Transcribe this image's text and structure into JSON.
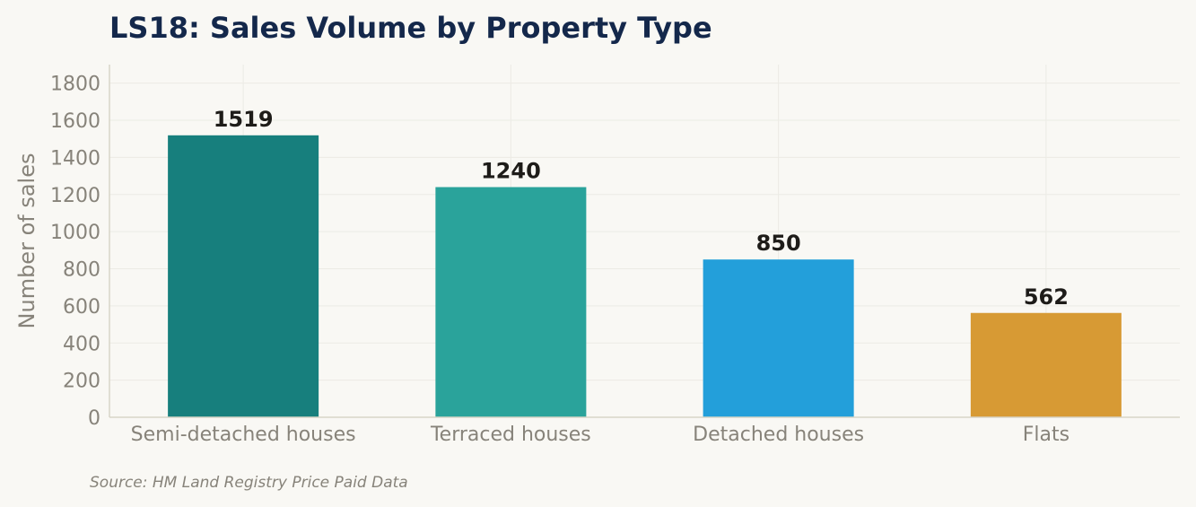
{
  "chart_data": {
    "type": "bar",
    "title": "LS18: Sales Volume by Property Type",
    "xlabel": "",
    "ylabel": "Number of sales",
    "categories": [
      "Semi-detached houses",
      "Terraced houses",
      "Detached houses",
      "Flats"
    ],
    "values": [
      1519,
      1240,
      850,
      562
    ],
    "value_labels": [
      "1519",
      "1240",
      "850",
      "562"
    ],
    "colors": [
      "#177f7d",
      "#2aa39b",
      "#239fda",
      "#d79a34"
    ],
    "ylim": [
      0,
      1900
    ],
    "yticks": [
      0,
      200,
      400,
      600,
      800,
      1000,
      1200,
      1400,
      1600,
      1800
    ],
    "grid": true,
    "legend": "none"
  },
  "footer": {
    "source": "Source: HM Land Registry Price Paid Data"
  }
}
